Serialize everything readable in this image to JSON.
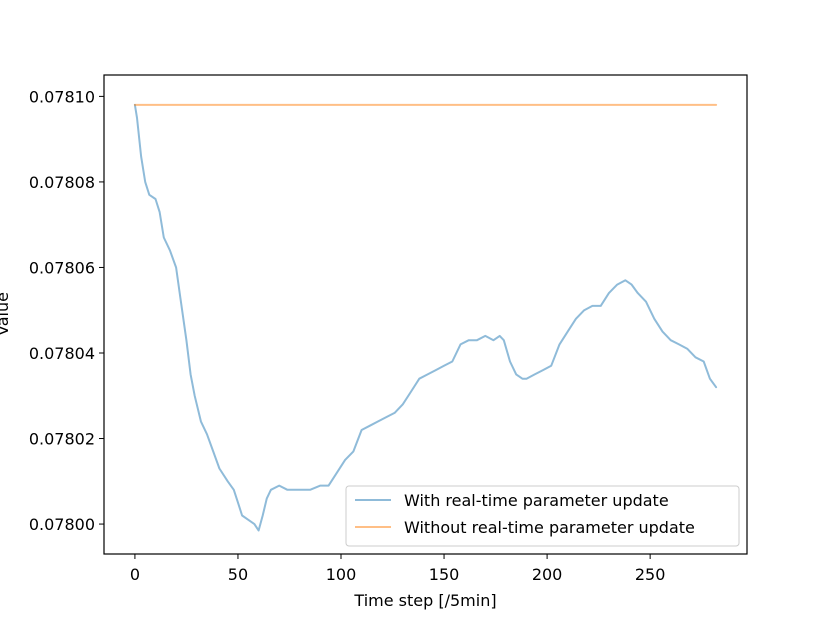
{
  "chart_data": {
    "type": "line",
    "title": "",
    "xlabel": "Time step [/5min]",
    "ylabel": "Value",
    "xlim": [
      -15,
      297
    ],
    "ylim": [
      0.077993,
      0.078105
    ],
    "xticks": [
      0,
      50,
      100,
      150,
      200,
      250
    ],
    "xtick_labels": [
      "0",
      "50",
      "100",
      "150",
      "200",
      "250"
    ],
    "yticks": [
      0.078,
      0.07802,
      0.07804,
      0.07806,
      0.07808,
      0.0781
    ],
    "ytick_labels": [
      "0.07800",
      "0.07802",
      "0.07804",
      "0.07806",
      "0.07808",
      "0.07810"
    ],
    "grid": false,
    "legend_position": "lower-right",
    "series": [
      {
        "name": "With real-time parameter update",
        "color": "#1f77b4",
        "points": [
          [
            0,
            0.078098
          ],
          [
            1,
            0.078095
          ],
          [
            3,
            0.078086
          ],
          [
            5,
            0.07808
          ],
          [
            7,
            0.078077
          ],
          [
            10,
            0.078076
          ],
          [
            12,
            0.078073
          ],
          [
            14,
            0.078067
          ],
          [
            17,
            0.078064
          ],
          [
            20,
            0.07806
          ],
          [
            22,
            0.078053
          ],
          [
            25,
            0.078043
          ],
          [
            27,
            0.078035
          ],
          [
            29,
            0.07803
          ],
          [
            32,
            0.078024
          ],
          [
            35,
            0.078021
          ],
          [
            38,
            0.078017
          ],
          [
            41,
            0.078013
          ],
          [
            45,
            0.07801
          ],
          [
            48,
            0.078008
          ],
          [
            50,
            0.078005
          ],
          [
            52,
            0.078002
          ],
          [
            55,
            0.078001
          ],
          [
            58,
            0.078
          ],
          [
            60,
            0.0779985
          ],
          [
            62,
            0.078002
          ],
          [
            64,
            0.078006
          ],
          [
            66,
            0.078008
          ],
          [
            70,
            0.078009
          ],
          [
            74,
            0.078008
          ],
          [
            80,
            0.078008
          ],
          [
            85,
            0.078008
          ],
          [
            90,
            0.078009
          ],
          [
            94,
            0.078009
          ],
          [
            98,
            0.078012
          ],
          [
            102,
            0.078015
          ],
          [
            106,
            0.078017
          ],
          [
            110,
            0.078022
          ],
          [
            114,
            0.078023
          ],
          [
            118,
            0.078024
          ],
          [
            122,
            0.078025
          ],
          [
            126,
            0.078026
          ],
          [
            130,
            0.078028
          ],
          [
            134,
            0.078031
          ],
          [
            138,
            0.078034
          ],
          [
            142,
            0.078035
          ],
          [
            146,
            0.078036
          ],
          [
            150,
            0.078037
          ],
          [
            154,
            0.078038
          ],
          [
            158,
            0.078042
          ],
          [
            162,
            0.078043
          ],
          [
            166,
            0.078043
          ],
          [
            170,
            0.078044
          ],
          [
            174,
            0.078043
          ],
          [
            177,
            0.078044
          ],
          [
            179,
            0.078043
          ],
          [
            182,
            0.078038
          ],
          [
            185,
            0.078035
          ],
          [
            188,
            0.078034
          ],
          [
            190,
            0.078034
          ],
          [
            194,
            0.078035
          ],
          [
            198,
            0.078036
          ],
          [
            202,
            0.078037
          ],
          [
            206,
            0.078042
          ],
          [
            210,
            0.078045
          ],
          [
            214,
            0.078048
          ],
          [
            218,
            0.07805
          ],
          [
            222,
            0.078051
          ],
          [
            226,
            0.078051
          ],
          [
            230,
            0.078054
          ],
          [
            234,
            0.078056
          ],
          [
            238,
            0.078057
          ],
          [
            241,
            0.078056
          ],
          [
            244,
            0.078054
          ],
          [
            248,
            0.078052
          ],
          [
            252,
            0.078048
          ],
          [
            256,
            0.078045
          ],
          [
            260,
            0.078043
          ],
          [
            264,
            0.078042
          ],
          [
            268,
            0.078041
          ],
          [
            272,
            0.078039
          ],
          [
            276,
            0.078038
          ],
          [
            279,
            0.078034
          ],
          [
            282,
            0.078032
          ]
        ]
      },
      {
        "name": "Without real-time parameter update",
        "color": "#ff7f0e",
        "points": [
          [
            0,
            0.078098
          ],
          [
            282,
            0.078098
          ]
        ]
      }
    ]
  }
}
